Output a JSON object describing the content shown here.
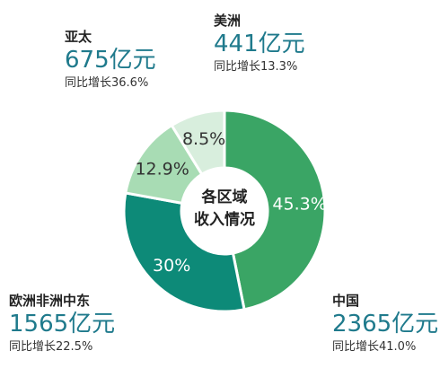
{
  "chart_data": {
    "type": "pie",
    "title": "",
    "center_label": [
      "各区域",
      "收入情况"
    ],
    "slices": [
      {
        "label": "中国",
        "percent_label": "45.3%",
        "value": 45.3,
        "amount": "2365亿元",
        "growth": "同比增长41.0%",
        "color": "#3aa565",
        "label_color": "#ffffff"
      },
      {
        "label": "欧洲非洲中东",
        "percent_label": "30%",
        "value": 30,
        "amount": "1565亿元",
        "growth": "同比增长22.5%",
        "color": "#0d8a78",
        "label_color": "#ffffff"
      },
      {
        "label": "亚太",
        "percent_label": "12.9%",
        "value": 12.9,
        "amount": "675亿元",
        "growth": "同比增长36.6%",
        "color": "#a8dcb4",
        "label_color": "#333333"
      },
      {
        "label": "美洲",
        "percent_label": "8.5%",
        "value": 8.5,
        "amount": "441亿元",
        "growth": "同比增长13.3%",
        "color": "#d8eedd",
        "label_color": "#333333"
      }
    ]
  }
}
